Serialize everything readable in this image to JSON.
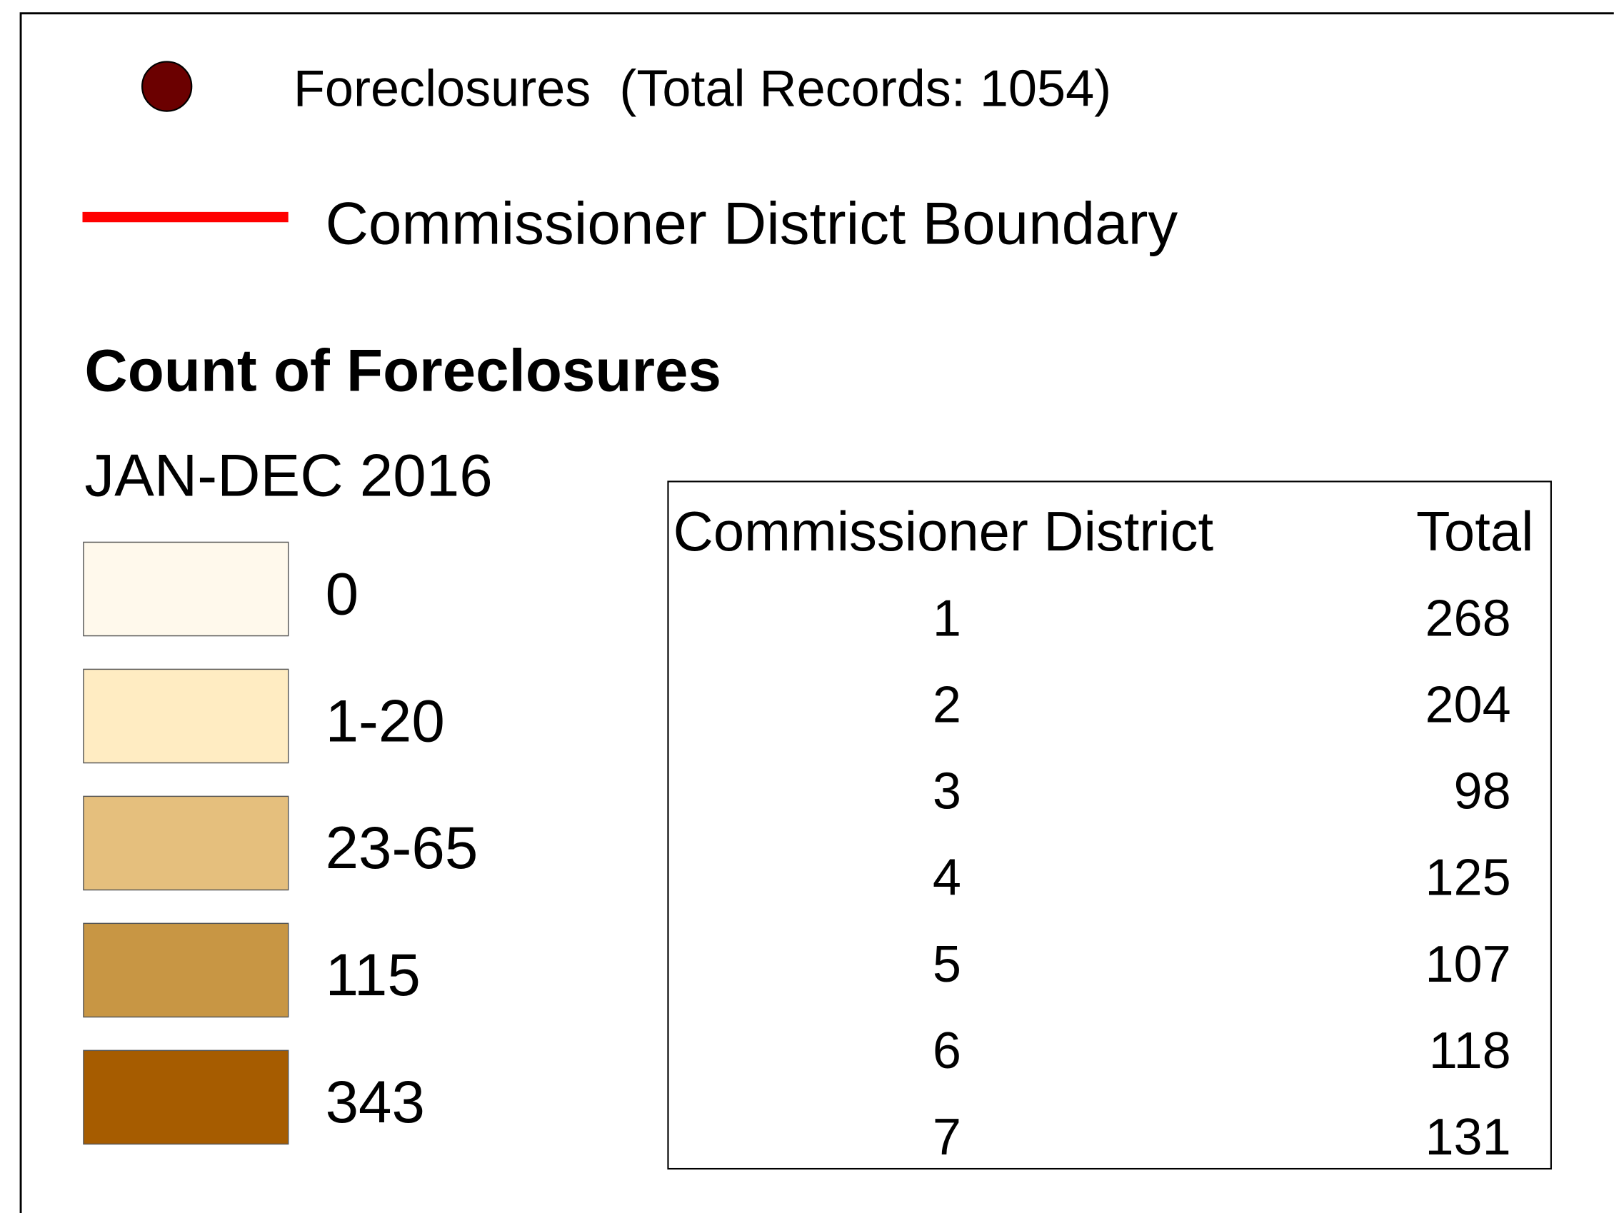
{
  "legend": {
    "symbols": [
      {
        "label": "Foreclosures  (Total Records: 1054)",
        "color": "#6b0000"
      },
      {
        "label": "Commissioner District Boundary",
        "color": "#ff0000"
      }
    ],
    "title": "Count of Foreclosures",
    "subtitle": "JAN-DEC 2016",
    "classes": [
      {
        "label": "0",
        "color": "#fff9ec"
      },
      {
        "label": "1-20",
        "color": "#ffecc2"
      },
      {
        "label": "23-65",
        "color": "#e5bf7d"
      },
      {
        "label": "115",
        "color": "#c89644"
      },
      {
        "label": "343",
        "color": "#a65c00"
      }
    ]
  },
  "table": {
    "header": [
      "Commissioner District",
      "Total"
    ],
    "rows": [
      [
        1,
        268
      ],
      [
        2,
        204
      ],
      [
        3,
        98
      ],
      [
        4,
        125
      ],
      [
        5,
        107
      ],
      [
        6,
        118
      ],
      [
        7,
        131
      ]
    ]
  }
}
